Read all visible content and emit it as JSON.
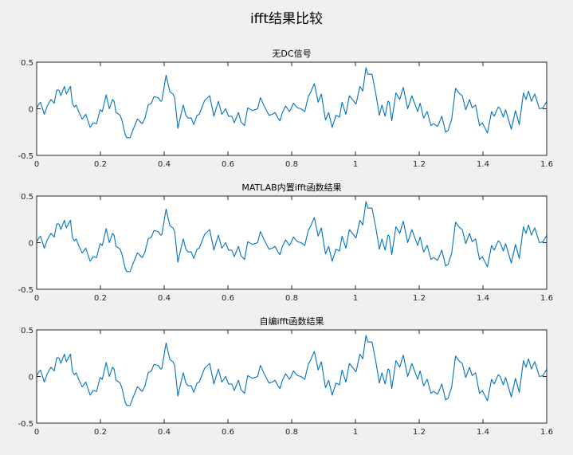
{
  "figure": {
    "title": "ifft结果比较",
    "line_color": "#0072bd",
    "axes_color": "#262626",
    "axes_background": "#ffffff",
    "figure_background": "#f0f0f0"
  },
  "chart_data": [
    {
      "type": "line",
      "title": "无DC信号",
      "xlabel": "",
      "ylabel": "",
      "xlim": [
        0,
        1.6
      ],
      "ylim": [
        -0.5,
        0.5
      ],
      "xticks": [
        "0",
        "0.2",
        "0.4",
        "0.6",
        "0.8",
        "1",
        "1.2",
        "1.4",
        "1.6"
      ],
      "yticks": [
        "-0.5",
        "0",
        "0.5"
      ],
      "grid": false,
      "series_ref": "waveform"
    },
    {
      "type": "line",
      "title": "MATLAB内置ifft函数结果",
      "xlabel": "",
      "ylabel": "",
      "xlim": [
        0,
        1.6
      ],
      "ylim": [
        -0.5,
        0.5
      ],
      "xticks": [
        "0",
        "0.2",
        "0.4",
        "0.6",
        "0.8",
        "1",
        "1.2",
        "1.4",
        "1.6"
      ],
      "yticks": [
        "-0.5",
        "0",
        "0.5"
      ],
      "grid": false,
      "series_ref": "waveform"
    },
    {
      "type": "line",
      "title": "自编ifft函数结果",
      "xlabel": "",
      "ylabel": "",
      "xlim": [
        0,
        1.6
      ],
      "ylim": [
        -0.5,
        0.5
      ],
      "xticks": [
        "0",
        "0.2",
        "0.4",
        "0.6",
        "0.8",
        "1",
        "1.2",
        "1.4",
        "1.6"
      ],
      "yticks": [
        "-0.5",
        "0",
        "0.5"
      ],
      "grid": false,
      "series_ref": "waveform"
    }
  ],
  "waveform": {
    "x": [
      0,
      0.007,
      0.012,
      0.024,
      0.033,
      0.045,
      0.055,
      0.063,
      0.07,
      0.076,
      0.087,
      0.093,
      0.106,
      0.112,
      0.118,
      0.124,
      0.133,
      0.143,
      0.154,
      0.168,
      0.177,
      0.188,
      0.199,
      0.206,
      0.218,
      0.228,
      0.238,
      0.243,
      0.249,
      0.262,
      0.268,
      0.278,
      0.283,
      0.293,
      0.303,
      0.316,
      0.331,
      0.339,
      0.35,
      0.36,
      0.368,
      0.381,
      0.389,
      0.393,
      0.406,
      0.418,
      0.427,
      0.433,
      0.443,
      0.452,
      0.46,
      0.468,
      0.475,
      0.485,
      0.493,
      0.503,
      0.51,
      0.527,
      0.543,
      0.556,
      0.57,
      0.581,
      0.593,
      0.602,
      0.612,
      0.62,
      0.633,
      0.641,
      0.652,
      0.662,
      0.677,
      0.693,
      0.702,
      0.712,
      0.729,
      0.739,
      0.748,
      0.754,
      0.763,
      0.771,
      0.781,
      0.793,
      0.806,
      0.818,
      0.829,
      0.841,
      0.852,
      0.86,
      0.871,
      0.883,
      0.893,
      0.906,
      0.916,
      0.927,
      0.939,
      0.95,
      0.958,
      0.97,
      0.981,
      1.002,
      1.014,
      1.023,
      1.033,
      1.039,
      1.052,
      1.064,
      1.075,
      1.083,
      1.093,
      1.102,
      1.106,
      1.114,
      1.127,
      1.139,
      1.15,
      1.164,
      1.177,
      1.195,
      1.203,
      1.214,
      1.225,
      1.237,
      1.245,
      1.258,
      1.271,
      1.283,
      1.291,
      1.302,
      1.314,
      1.327,
      1.335,
      1.346,
      1.358,
      1.366,
      1.377,
      1.389,
      1.398,
      1.414,
      1.427,
      1.435,
      1.448,
      1.454,
      1.464,
      1.471,
      1.489,
      1.502,
      1.514,
      1.527,
      1.535,
      1.543,
      1.552,
      1.5625,
      1.577,
      1.589,
      1.6
    ],
    "y": [
      0.01,
      0.05,
      0.07,
      -0.06,
      0.03,
      0.1,
      0.06,
      0.2,
      0.2,
      0.14,
      0.24,
      0.16,
      0.24,
      0.06,
      0.02,
      0.04,
      -0.04,
      -0.11,
      -0.06,
      -0.2,
      -0.15,
      -0.16,
      -0.01,
      -0.03,
      0.15,
      0.0,
      0.1,
      0.08,
      -0.04,
      -0.07,
      -0.13,
      -0.28,
      -0.31,
      -0.31,
      -0.22,
      -0.11,
      -0.16,
      -0.11,
      0.04,
      0.06,
      0.13,
      0.12,
      0.08,
      0.09,
      0.36,
      0.18,
      0.16,
      0.12,
      -0.21,
      -0.07,
      0.04,
      -0.07,
      -0.1,
      -0.1,
      -0.17,
      -0.07,
      -0.06,
      0.09,
      0.14,
      -0.08,
      0.08,
      -0.06,
      0.0,
      -0.08,
      -0.08,
      -0.15,
      -0.04,
      -0.14,
      -0.18,
      0.01,
      -0.02,
      0.0,
      0.12,
      0.04,
      -0.07,
      -0.06,
      -0.04,
      -0.08,
      -0.13,
      -0.04,
      0.03,
      -0.03,
      0.06,
      0.01,
      0.0,
      -0.03,
      0.13,
      0.18,
      0.27,
      0.07,
      0.16,
      -0.12,
      -0.04,
      -0.2,
      -0.07,
      -0.09,
      0.07,
      -0.06,
      0.14,
      0.05,
      0.24,
      0.19,
      0.44,
      0.37,
      0.37,
      0.16,
      -0.07,
      0.04,
      -0.08,
      0.08,
      0.07,
      -0.13,
      0.17,
      0.1,
      0.23,
      0.0,
      0.14,
      -0.03,
      0.06,
      -0.1,
      -0.03,
      -0.18,
      -0.16,
      -0.19,
      -0.08,
      -0.25,
      -0.23,
      -0.11,
      0.22,
      0.16,
      0.14,
      -0.01,
      0.1,
      0.01,
      0.04,
      -0.18,
      -0.15,
      -0.26,
      -0.03,
      -0.08,
      0.02,
      0.0,
      -0.09,
      -0.01,
      -0.22,
      -0.02,
      -0.17,
      0.17,
      0.1,
      0.19,
      0.08,
      0.16,
      0.0,
      0.01,
      0.08
    ]
  }
}
